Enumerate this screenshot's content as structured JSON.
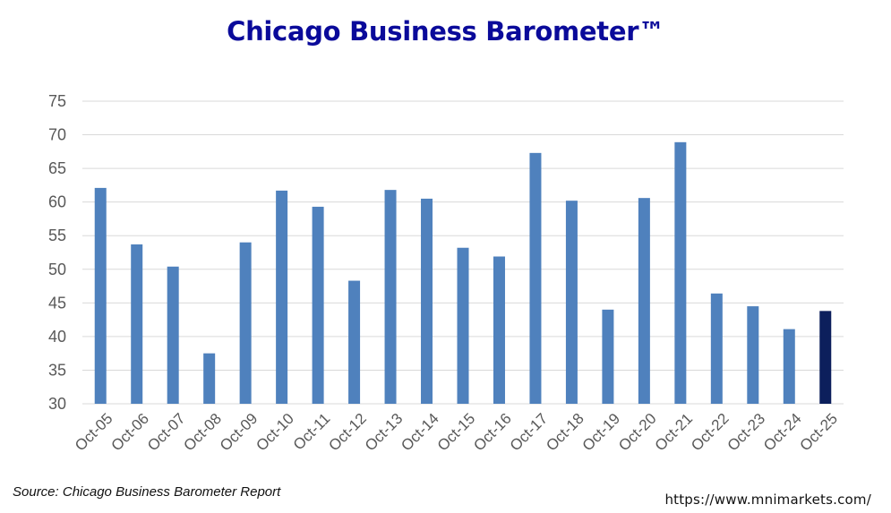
{
  "chart_data": {
    "type": "bar",
    "title": "Chicago Business Barometer™",
    "xlabel": "",
    "ylabel": "",
    "ylim": [
      30,
      75
    ],
    "yticks": [
      30,
      35,
      40,
      45,
      50,
      55,
      60,
      65,
      70,
      75
    ],
    "grid": "horizontal",
    "categories": [
      "Oct-05",
      "Oct-06",
      "Oct-07",
      "Oct-08",
      "Oct-09",
      "Oct-10",
      "Oct-11",
      "Oct-12",
      "Oct-13",
      "Oct-14",
      "Oct-15",
      "Oct-16",
      "Oct-17",
      "Oct-18",
      "Oct-19",
      "Oct-20",
      "Oct-21",
      "Oct-22",
      "Oct-23",
      "Oct-24",
      "Oct-25"
    ],
    "values": [
      62.1,
      53.7,
      50.4,
      37.5,
      54.0,
      61.7,
      59.3,
      48.3,
      61.8,
      60.5,
      53.2,
      51.9,
      67.3,
      60.2,
      44.0,
      60.6,
      68.9,
      46.4,
      44.5,
      41.1,
      43.8
    ],
    "colors": {
      "bar": "#4f81bd",
      "highlight": "#0c1f5c",
      "grid": "#d9d9d9"
    },
    "highlight_index": 20
  },
  "footer": {
    "source": "Source: Chicago Business Barometer Report",
    "website": "https://www.mnimarkets.com/"
  }
}
